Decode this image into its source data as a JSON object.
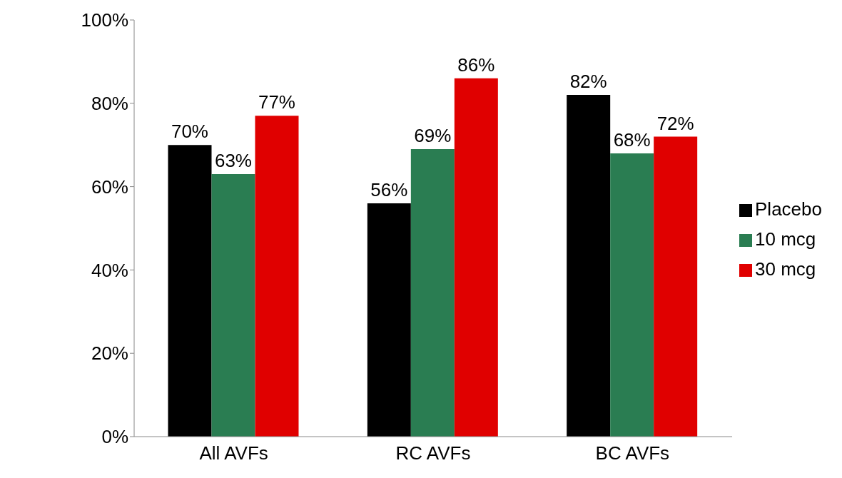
{
  "chart_data": {
    "type": "bar",
    "categories": [
      "All AVFs",
      "RC AVFs",
      "BC AVFs"
    ],
    "series": [
      {
        "name": "Placebo",
        "color": "#000000",
        "values": [
          70,
          56,
          82
        ],
        "value_labels": [
          "70%",
          "56%",
          "82%"
        ]
      },
      {
        "name": "10 mcg",
        "color": "#2a7d52",
        "values": [
          63,
          69,
          68
        ],
        "value_labels": [
          "63%",
          "69%",
          "68%"
        ]
      },
      {
        "name": "30 mcg",
        "color": "#e00000",
        "values": [
          77,
          86,
          72
        ],
        "value_labels": [
          "77%",
          "86%",
          "72%"
        ]
      }
    ],
    "ylim": [
      0,
      100
    ],
    "yticks": [
      {
        "value": 0,
        "label": "0%"
      },
      {
        "value": 20,
        "label": "20%"
      },
      {
        "value": 40,
        "label": "40%"
      },
      {
        "value": 60,
        "label": "60%"
      },
      {
        "value": 80,
        "label": "80%"
      },
      {
        "value": 100,
        "label": "100%"
      }
    ],
    "grid": false,
    "legend": "right"
  }
}
